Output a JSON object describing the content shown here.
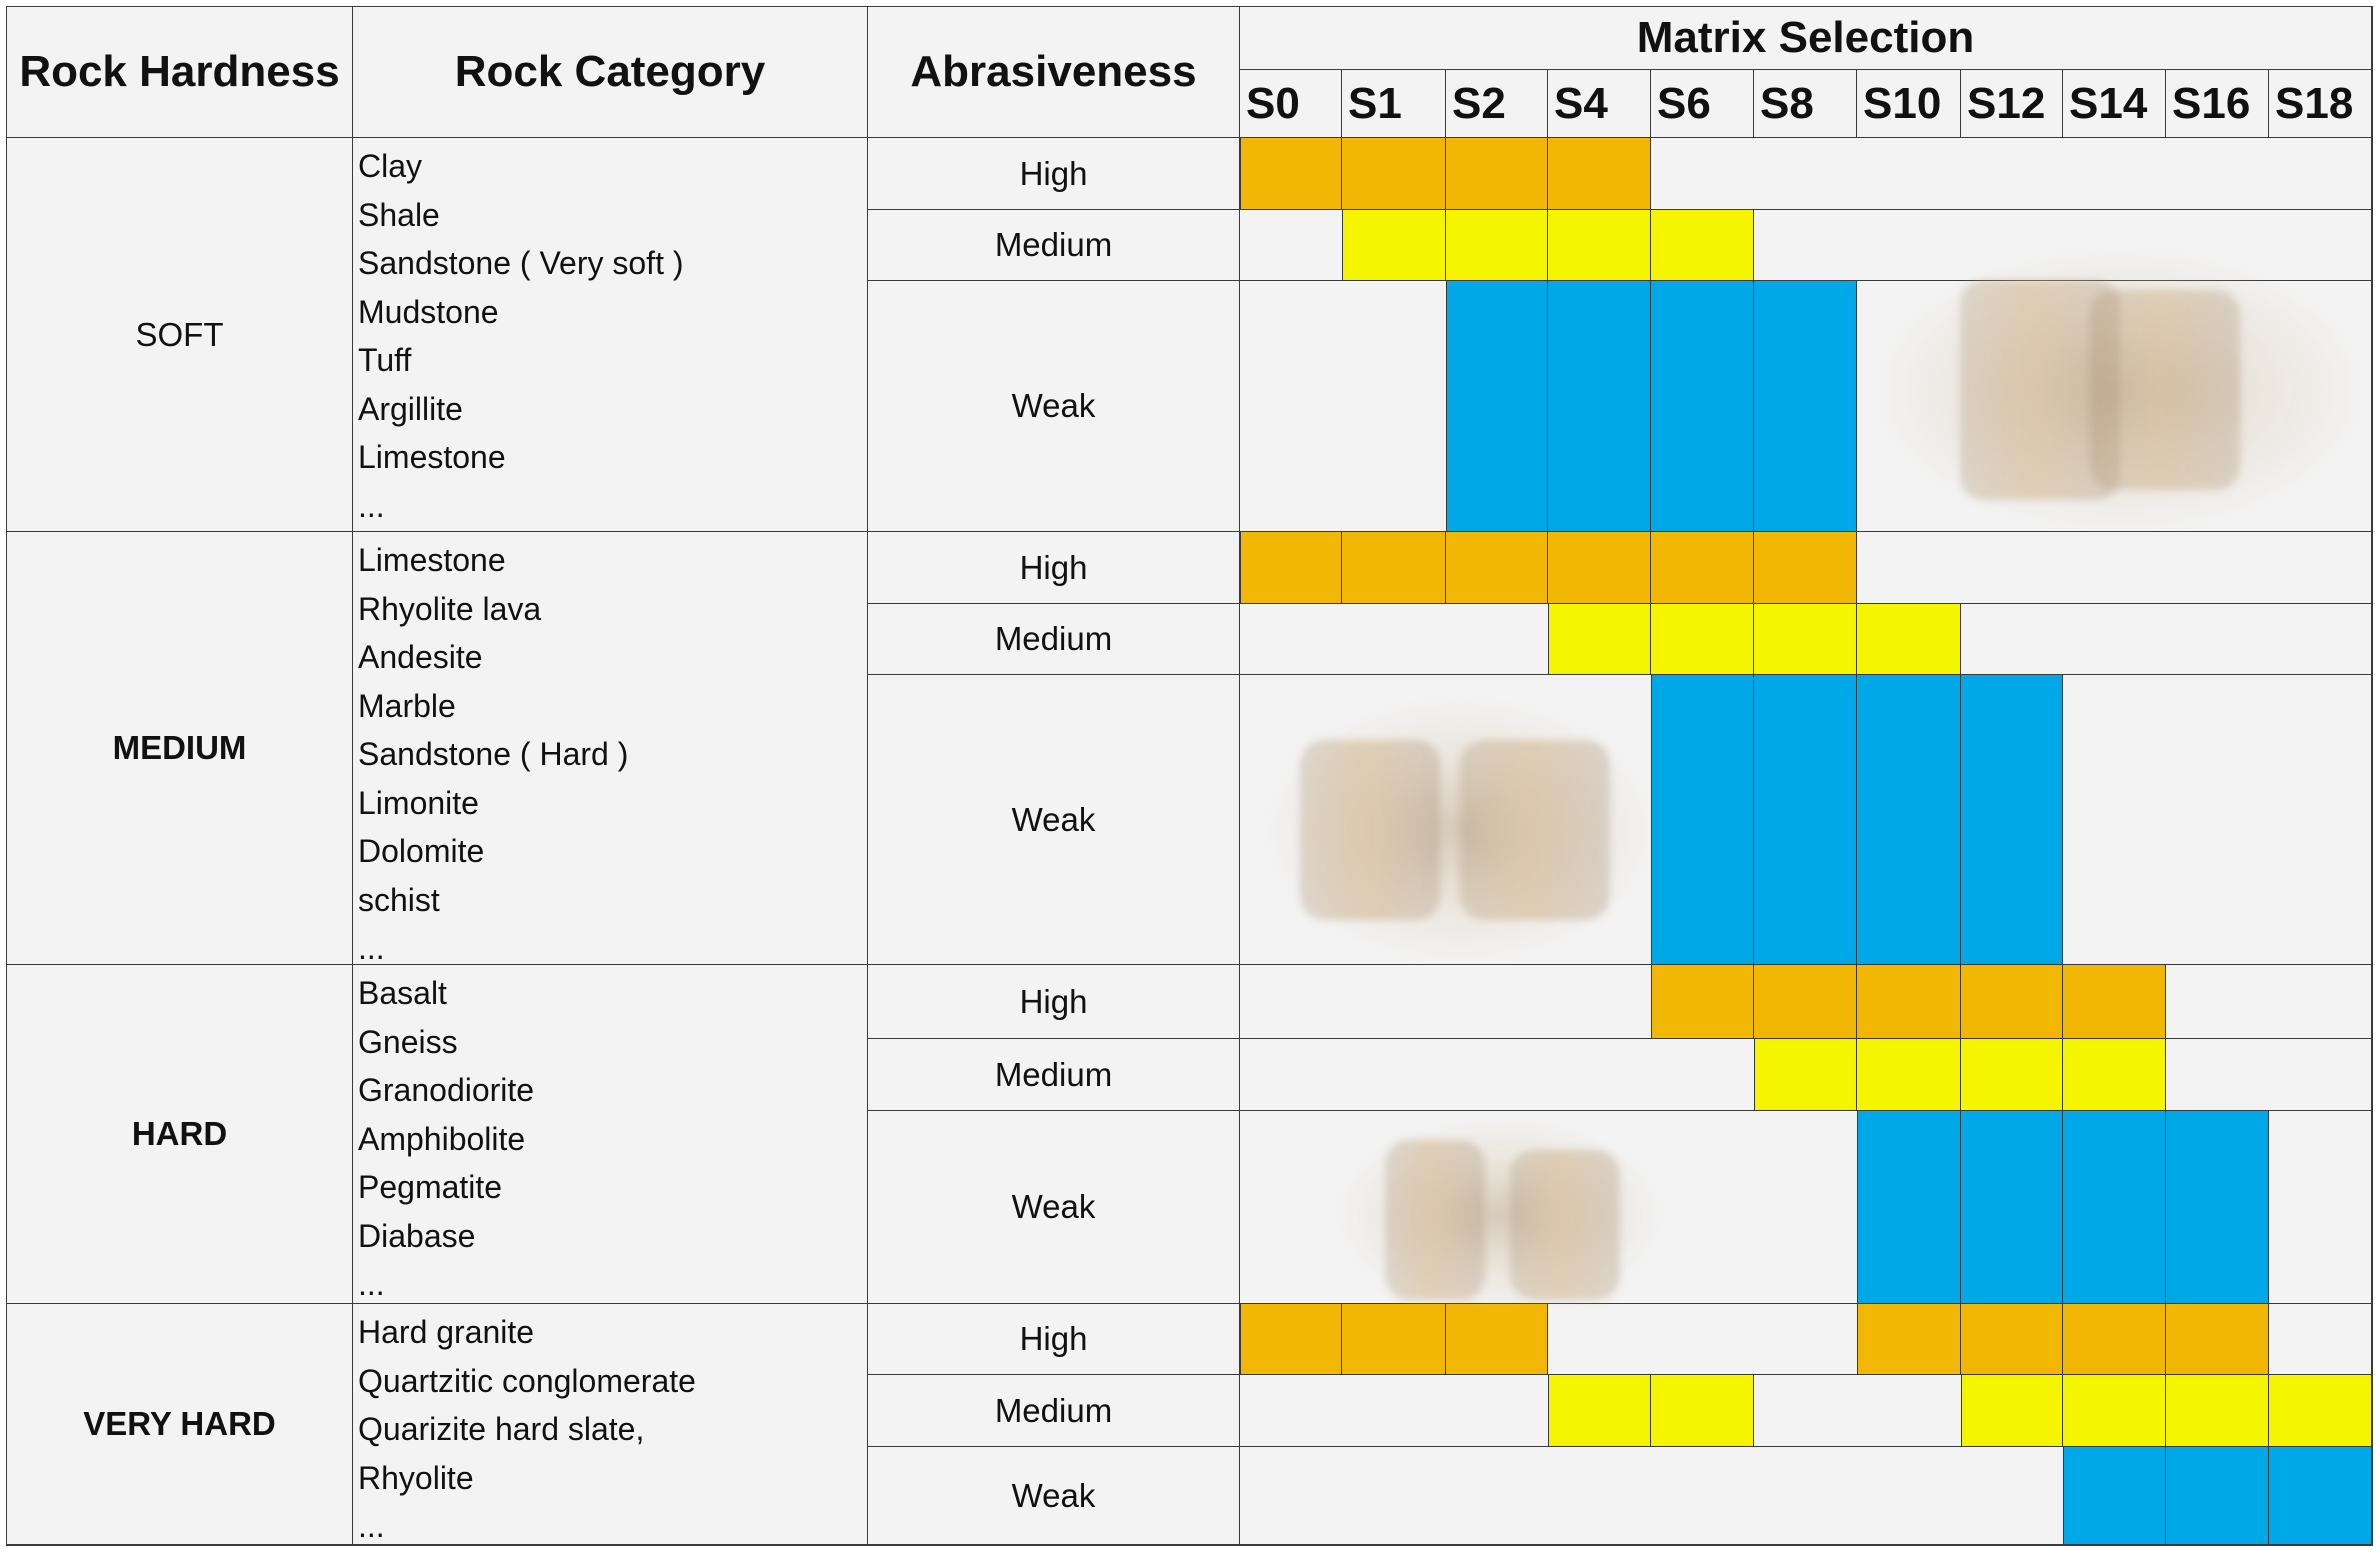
{
  "header": {
    "rock_hardness": "Rock Hardness",
    "rock_category": "Rock Category",
    "abrasiveness": "Abrasiveness",
    "matrix_selection": "Matrix Selection",
    "matrix_columns": [
      "S0",
      "S1",
      "S2",
      "S4",
      "S6",
      "S8",
      "S10",
      "S12",
      "S14",
      "S16",
      "S18"
    ]
  },
  "colors": {
    "high": "#F2B705",
    "medium": "#F5F500",
    "weak": "#00A8E8",
    "cell_bg": "#F3F3F3",
    "grid": "#3A3A3A"
  },
  "groups": [
    {
      "hardness": "SOFT",
      "bold": false,
      "categories": [
        "Clay",
        "Shale",
        "Sandstone ( Very soft )",
        "Mudstone",
        "Tuff",
        "Argillite",
        "Limestone",
        "..."
      ],
      "rows": [
        {
          "abrasiveness": "High",
          "level": "high",
          "matrix": [
            1,
            1,
            1,
            1,
            0,
            0,
            0,
            0,
            0,
            0,
            0
          ]
        },
        {
          "abrasiveness": "Medium",
          "level": "medium",
          "matrix": [
            0,
            1,
            1,
            1,
            1,
            0,
            0,
            0,
            0,
            0,
            0
          ]
        },
        {
          "abrasiveness": "Weak",
          "level": "weak",
          "matrix": [
            0,
            0,
            1,
            1,
            1,
            1,
            0,
            0,
            0,
            0,
            0
          ]
        }
      ]
    },
    {
      "hardness": "MEDIUM",
      "bold": true,
      "categories": [
        "Limestone",
        "Rhyolite lava",
        "Andesite",
        "Marble",
        "Sandstone ( Hard )",
        "Limonite",
        "Dolomite",
        "schist",
        "..."
      ],
      "rows": [
        {
          "abrasiveness": "High",
          "level": "high",
          "matrix": [
            1,
            1,
            1,
            1,
            1,
            1,
            0,
            0,
            0,
            0,
            0
          ]
        },
        {
          "abrasiveness": "Medium",
          "level": "medium",
          "matrix": [
            0,
            0,
            0,
            1,
            1,
            1,
            1,
            0,
            0,
            0,
            0
          ]
        },
        {
          "abrasiveness": "Weak",
          "level": "weak",
          "matrix": [
            0,
            0,
            0,
            0,
            1,
            1,
            1,
            1,
            0,
            0,
            0
          ]
        }
      ]
    },
    {
      "hardness": "HARD",
      "bold": true,
      "categories": [
        "Basalt",
        "Gneiss",
        "Granodiorite",
        "Amphibolite",
        "Pegmatite",
        "Diabase",
        "..."
      ],
      "rows": [
        {
          "abrasiveness": "High",
          "level": "high",
          "matrix": [
            0,
            0,
            0,
            0,
            1,
            1,
            1,
            1,
            1,
            0,
            0
          ]
        },
        {
          "abrasiveness": "Medium",
          "level": "medium",
          "matrix": [
            0,
            0,
            0,
            0,
            0,
            1,
            1,
            1,
            1,
            0,
            0
          ]
        },
        {
          "abrasiveness": "Weak",
          "level": "weak",
          "matrix": [
            0,
            0,
            0,
            0,
            0,
            0,
            1,
            1,
            1,
            1,
            0
          ]
        }
      ]
    },
    {
      "hardness": "VERY HARD",
      "bold": true,
      "categories": [
        "Hard granite",
        "Quartzitic conglomerate",
        "Quarizite hard slate,",
        "Rhyolite",
        "..."
      ],
      "rows": [
        {
          "abrasiveness": "High",
          "level": "high",
          "matrix": [
            1,
            1,
            1,
            0,
            0,
            0,
            1,
            1,
            1,
            1,
            0
          ]
        },
        {
          "abrasiveness": "Medium",
          "level": "medium",
          "matrix": [
            0,
            0,
            0,
            1,
            1,
            0,
            0,
            1,
            1,
            1,
            1
          ]
        },
        {
          "abrasiveness": "Weak",
          "level": "weak",
          "matrix": [
            0,
            0,
            0,
            0,
            0,
            0,
            0,
            0,
            1,
            1,
            1
          ]
        }
      ]
    }
  ]
}
